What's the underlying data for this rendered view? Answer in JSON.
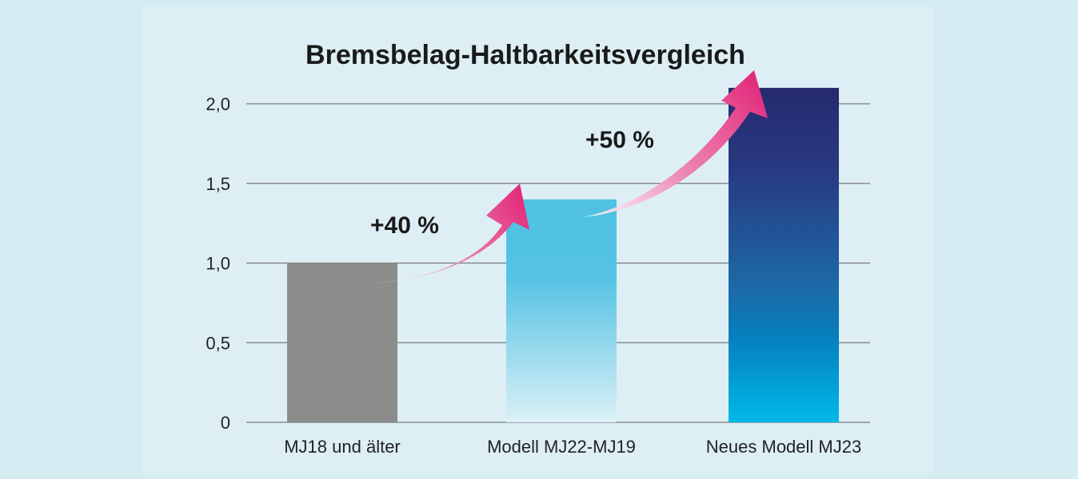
{
  "chart_data": {
    "type": "bar",
    "title": "Bremsbelag-Haltbarkeitsvergleich",
    "categories": [
      "MJ18 und älter",
      "Modell MJ22-MJ19",
      "Neues Modell MJ23"
    ],
    "values": [
      1.0,
      1.4,
      2.1
    ],
    "ylim": [
      0,
      2.0
    ],
    "yticks": [
      0,
      0.5,
      1.0,
      1.5,
      2.0
    ],
    "ytick_labels": [
      "0",
      "0,5",
      "1,0",
      "1,5",
      "2,0"
    ],
    "xlabel": "",
    "ylabel": "",
    "grid": true,
    "annotations": [
      "+40 %",
      "+50 %"
    ],
    "colors": {
      "background": "#d6ecf3",
      "panel": "#ddeff5",
      "bar1": "#8c8c8c",
      "bar2_top": "#4fc1e3",
      "bar2_bottom": "#d9eff6",
      "bar3_top": "#232a6e",
      "bar3_mid": "#1f5d9c",
      "bar3_low": "#0a7fb8",
      "bar3_bottom": "#00b7e6",
      "arrow": "#e0317a",
      "grid": "#7a7a7a"
    }
  }
}
